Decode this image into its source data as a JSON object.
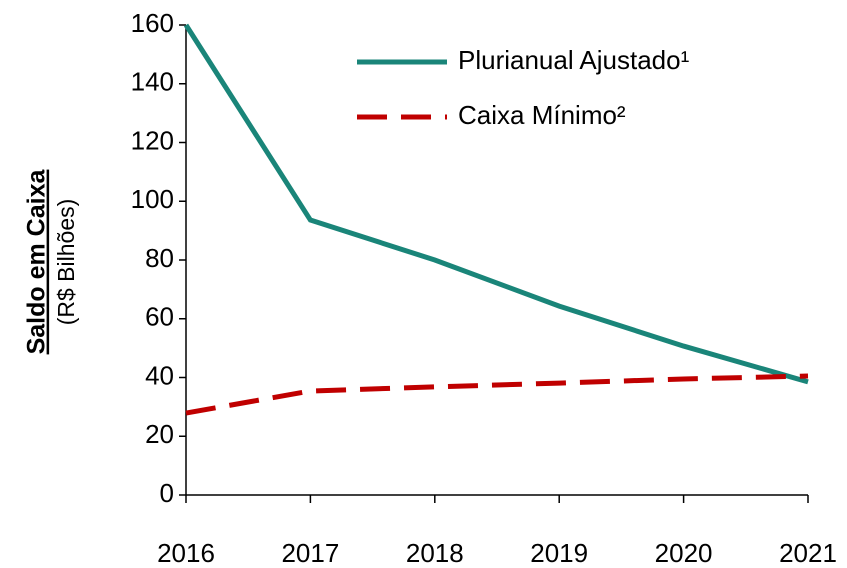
{
  "chart_data": {
    "type": "line",
    "ylabel": "Saldo em Caixa",
    "ylabel_unit": "(R$ Bilhões)",
    "categories": [
      "2016",
      "2017",
      "2018",
      "2019",
      "2020",
      "2021"
    ],
    "series": [
      {
        "name": "Plurianual Ajustado¹",
        "color": "#1a8579",
        "dash": "solid",
        "values": [
          160,
          93.6,
          80,
          64.3,
          50.7,
          38.5
        ]
      },
      {
        "name": "Caixa Mínimo²",
        "color": "#c00000",
        "dash": "dashed",
        "values": [
          27.9,
          35.4,
          36.8,
          38.1,
          39.5,
          40.5
        ]
      }
    ],
    "ylim": [
      0,
      160
    ],
    "yticks": [
      0,
      20,
      40,
      60,
      80,
      100,
      120,
      140,
      160
    ],
    "grid": false
  }
}
